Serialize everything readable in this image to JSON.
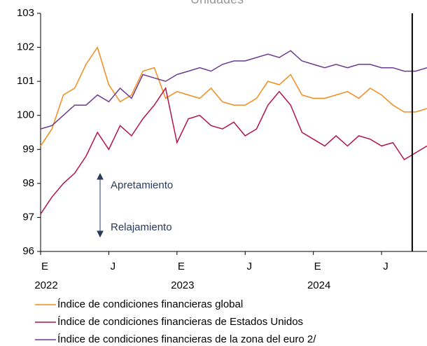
{
  "chart_data": {
    "type": "line",
    "title": "Unidades",
    "x": [
      0,
      1,
      2,
      3,
      4,
      5,
      6,
      7,
      8,
      9,
      10,
      11,
      12,
      13,
      14,
      15,
      16,
      17,
      18,
      19,
      20,
      21,
      22,
      23,
      24,
      25,
      26,
      27,
      28,
      29,
      30,
      31,
      32,
      33,
      34
    ],
    "series": [
      {
        "name": "Índice de condiciones financieras global",
        "color": "#f28c1e",
        "values": [
          99.1,
          99.6,
          100.6,
          100.8,
          101.5,
          102.0,
          100.9,
          100.4,
          100.6,
          101.3,
          101.4,
          100.5,
          100.7,
          100.6,
          100.5,
          100.8,
          100.4,
          100.3,
          100.3,
          100.5,
          101.0,
          100.9,
          101.2,
          100.6,
          100.5,
          100.5,
          100.6,
          100.7,
          100.5,
          100.8,
          100.6,
          100.3,
          100.1,
          100.1,
          100.2
        ]
      },
      {
        "name": "Índice de condiciones financieras de Estados Unidos",
        "color": "#b0144a",
        "values": [
          97.1,
          97.6,
          98.0,
          98.3,
          98.8,
          99.5,
          99.0,
          99.7,
          99.4,
          99.9,
          100.3,
          100.8,
          99.2,
          99.9,
          100.0,
          99.7,
          99.6,
          99.8,
          99.4,
          99.6,
          100.3,
          100.7,
          100.3,
          99.5,
          99.3,
          99.1,
          99.4,
          99.1,
          99.4,
          99.3,
          99.1,
          99.2,
          98.7,
          98.9,
          99.1
        ]
      },
      {
        "name": "Índice de condiciones financieras de la zona del euro 2/",
        "color": "#6b3a8e",
        "values": [
          99.6,
          99.7,
          100.0,
          100.3,
          100.3,
          100.6,
          100.4,
          100.8,
          100.5,
          101.2,
          101.1,
          101.0,
          101.2,
          101.3,
          101.4,
          101.3,
          101.5,
          101.6,
          101.6,
          101.7,
          101.8,
          101.7,
          101.9,
          101.6,
          101.5,
          101.4,
          101.5,
          101.4,
          101.5,
          101.5,
          101.4,
          101.4,
          101.3,
          101.3,
          101.4
        ]
      }
    ],
    "xlim": [
      0,
      34
    ],
    "xticks": [
      {
        "value": 0,
        "label": "E"
      },
      {
        "value": 6,
        "label": "J"
      },
      {
        "value": 12,
        "label": "E"
      },
      {
        "value": 18,
        "label": "J"
      },
      {
        "value": 24,
        "label": "E"
      },
      {
        "value": 30,
        "label": "J"
      }
    ],
    "xtick_years": [
      {
        "value": 0,
        "label": "2022"
      },
      {
        "value": 12,
        "label": "2023"
      },
      {
        "value": 24,
        "label": "2024"
      }
    ],
    "ylim": [
      96,
      103
    ],
    "yticks": [
      96,
      97,
      98,
      99,
      100,
      101,
      102,
      103
    ],
    "vline": 32.7,
    "annotations": [
      "Apretamiento",
      "Relajamiento"
    ],
    "grid": false
  }
}
